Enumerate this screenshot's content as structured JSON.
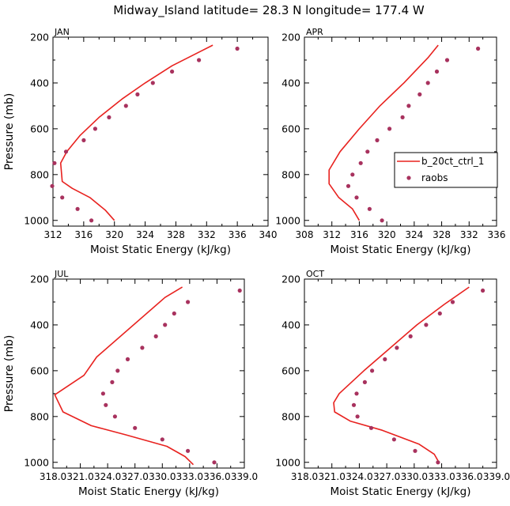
{
  "title": "Midway_Island  latitude= 28.3 N longitude= 177.4 W",
  "colors": {
    "model": "#e8221f",
    "raobs": "#a8325e",
    "axis": "#000000"
  },
  "legend": {
    "model_label": "b_20ct_ctrl_1",
    "raobs_label": "raobs"
  },
  "chart_data": [
    {
      "type": "line",
      "panel_label": "JAN",
      "xlabel": "Moist Static Energy (kJ/kg)",
      "ylabel": "Pressure (mb)",
      "xlim": [
        312,
        340
      ],
      "xticks": [
        "312",
        "316",
        "320",
        "324",
        "328",
        "332",
        "336",
        "340"
      ],
      "xtick_values": [
        312,
        316,
        320,
        324,
        328,
        332,
        336,
        340
      ],
      "ylim": [
        1025,
        200
      ],
      "yticks": [
        200,
        400,
        600,
        800,
        1000
      ],
      "series": [
        {
          "name": "b_20ct_ctrl_1",
          "kind": "line",
          "x": [
            332.8,
            327.5,
            324,
            321,
            318,
            315.5,
            313.8,
            313,
            313.2,
            314.5,
            316.8,
            318.8,
            320
          ],
          "y": [
            235,
            325,
            400,
            470,
            550,
            630,
            700,
            750,
            830,
            860,
            900,
            955,
            1000
          ]
        },
        {
          "name": "raobs",
          "kind": "points",
          "x": [
            336,
            331,
            327.5,
            325,
            323,
            321.5,
            319.3,
            317.5,
            316,
            313.7,
            312.2,
            311.9,
            313.2,
            315.2,
            317
          ],
          "y": [
            250,
            300,
            350,
            400,
            450,
            500,
            550,
            600,
            650,
            700,
            750,
            850,
            900,
            950,
            1000
          ]
        }
      ]
    },
    {
      "type": "line",
      "panel_label": "APR",
      "xlabel": "Moist Static Energy (kJ/kg)",
      "ylabel": "Pressure (mb)",
      "xlim": [
        308,
        336
      ],
      "xticks": [
        "308",
        "312",
        "316",
        "320",
        "324",
        "328",
        "332",
        "336"
      ],
      "xtick_values": [
        308,
        312,
        316,
        320,
        324,
        328,
        332,
        336
      ],
      "ylim": [
        1025,
        200
      ],
      "yticks": [
        200,
        400,
        600,
        800,
        1000
      ],
      "series": [
        {
          "name": "b_20ct_ctrl_1",
          "kind": "line",
          "x": [
            327.5,
            326,
            322.5,
            319,
            316,
            313.2,
            311.6,
            311.6,
            313,
            315,
            316
          ],
          "y": [
            235,
            290,
            400,
            500,
            600,
            700,
            780,
            840,
            900,
            950,
            1000
          ]
        },
        {
          "name": "raobs",
          "kind": "points",
          "x": [
            333.3,
            328.8,
            327.3,
            326,
            324.8,
            323.2,
            322.3,
            320.4,
            318.6,
            317.2,
            316.2,
            315,
            314.4,
            315.6,
            317.5,
            319.3
          ],
          "y": [
            250,
            300,
            350,
            400,
            450,
            500,
            550,
            600,
            650,
            700,
            750,
            800,
            850,
            900,
            950,
            1000
          ]
        }
      ]
    },
    {
      "type": "line",
      "panel_label": "JUL",
      "xlabel": "Moist Static Energy (kJ/kg)",
      "ylabel": "Pressure (mb)",
      "xlim": [
        318.0,
        339.0
      ],
      "xticks": [
        "318.0",
        "321.0",
        "324.0",
        "327.0",
        "330.0",
        "333.0",
        "336.0",
        "339.0"
      ],
      "xtick_values": [
        318.0,
        321.0,
        324.0,
        327.0,
        330.0,
        333.0,
        336.0,
        339.0
      ],
      "ylim": [
        1025,
        200
      ],
      "yticks": [
        200,
        400,
        600,
        800,
        1000
      ],
      "series": [
        {
          "name": "b_20ct_ctrl_1",
          "kind": "line",
          "x": [
            332.2,
            330.3,
            322.8,
            321.4,
            318.2,
            319.1,
            322.2,
            326,
            330.5,
            332.5,
            333.4
          ],
          "y": [
            235,
            280,
            540,
            620,
            705,
            780,
            840,
            880,
            930,
            975,
            1010
          ]
        },
        {
          "name": "raobs",
          "kind": "points",
          "x": [
            338.5,
            332.8,
            331.3,
            330.3,
            329.3,
            327.8,
            326.2,
            325.1,
            324.5,
            323.5,
            323.8,
            324.8,
            327,
            330,
            332.8,
            335.7
          ],
          "y": [
            250,
            300,
            350,
            400,
            450,
            500,
            550,
            600,
            650,
            700,
            750,
            800,
            850,
            900,
            950,
            1000
          ]
        }
      ]
    },
    {
      "type": "line",
      "panel_label": "OCT",
      "xlabel": "Moist Static Energy (kJ/kg)",
      "ylabel": "Pressure (mb)",
      "xlim": [
        318.0,
        339.0
      ],
      "xticks": [
        "318.0",
        "321.0",
        "324.0",
        "327.0",
        "330.0",
        "333.0",
        "336.0",
        "339.0"
      ],
      "xtick_values": [
        318.0,
        321.0,
        324.0,
        327.0,
        330.0,
        333.0,
        336.0,
        339.0
      ],
      "ylim": [
        1025,
        200
      ],
      "yticks": [
        200,
        400,
        600,
        800,
        1000
      ],
      "series": [
        {
          "name": "b_20ct_ctrl_1",
          "kind": "line",
          "x": [
            336,
            333.3,
            330.3,
            327.4,
            324.5,
            321.8,
            321.2,
            321.3,
            323,
            326.5,
            330.5,
            332.2,
            332.7
          ],
          "y": [
            235,
            310,
            400,
            500,
            600,
            700,
            740,
            780,
            820,
            860,
            920,
            965,
            1000
          ]
        },
        {
          "name": "raobs",
          "kind": "points",
          "x": [
            337.5,
            334.2,
            332.8,
            331.3,
            329.6,
            328.1,
            326.8,
            325.4,
            324.6,
            323.7,
            323.4,
            323.8,
            325.3,
            327.8,
            330.1,
            332.6
          ],
          "y": [
            250,
            300,
            350,
            400,
            450,
            500,
            550,
            600,
            650,
            700,
            750,
            800,
            850,
            900,
            950,
            1000
          ]
        }
      ]
    }
  ]
}
